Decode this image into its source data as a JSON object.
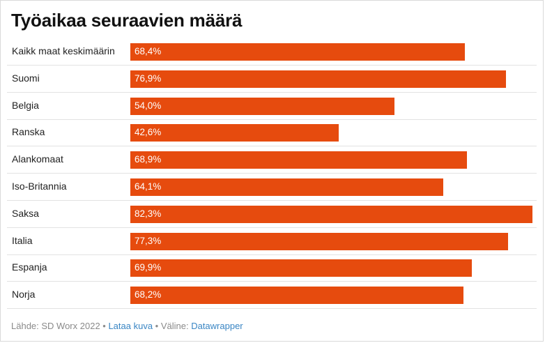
{
  "chart_data": {
    "type": "bar",
    "title": "Työaikaa seuraavien määrä",
    "categories": [
      "Kaikk maat keskimäärin",
      "Suomi",
      "Belgia",
      "Ranska",
      "Alankomaat",
      "Iso-Britannia",
      "Saksa",
      "Italia",
      "Espanja",
      "Norja"
    ],
    "values": [
      68.4,
      76.9,
      54.0,
      42.6,
      68.9,
      64.1,
      82.3,
      77.3,
      69.9,
      68.2
    ],
    "value_labels": [
      "68,4%",
      "76,9%",
      "54,0%",
      "42,6%",
      "68,9%",
      "64,1%",
      "82,3%",
      "77,3%",
      "69,9%",
      "68,2%"
    ],
    "orientation": "horizontal",
    "xlim": [
      0,
      82.3
    ],
    "bar_color": "#e64b0e",
    "grid": false,
    "legend": false
  },
  "footer": {
    "source": "Lähde: SD Worx 2022",
    "sep1": " • ",
    "download_link": "Lataa kuva",
    "sep2": " • Väline: ",
    "tool_link": "Datawrapper"
  }
}
